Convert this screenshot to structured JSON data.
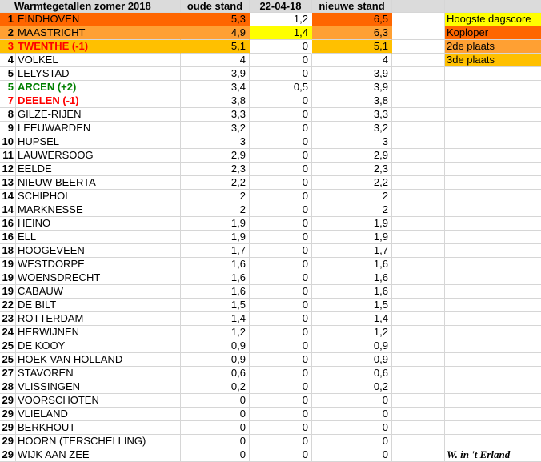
{
  "header": {
    "title": "Warmtegetallen zomer 2018",
    "col_oude": "oude stand",
    "col_date": "22-04-18",
    "col_nieuwe": "nieuwe stand"
  },
  "colors": {
    "koploper": "#FF6600",
    "second": "#FFA033",
    "third": "#FFC000",
    "dagscore": "#FFFF00",
    "red_text": "#FF0000",
    "green_text": "#008000",
    "header_bg": "#DBDBDB",
    "gridline": "#D6D6D6"
  },
  "legend": [
    {
      "label": "Hoogste dagscore",
      "color": "dagscore"
    },
    {
      "label": "Koploper",
      "color": "koploper"
    },
    {
      "label": "2de plaats",
      "color": "second"
    },
    {
      "label": "3de plaats",
      "color": "third"
    }
  ],
  "signature": "W. in 't Erland",
  "rows": [
    {
      "rank": "1",
      "name": "EINDHOVEN",
      "oude": "5,3",
      "dag": "1,2",
      "nieuwe": "6,5",
      "fill": "koploper"
    },
    {
      "rank": "2",
      "name": "MAASTRICHT",
      "oude": "4,9",
      "dag": "1,4",
      "nieuwe": "6,3",
      "fill": "second",
      "dag_fill": "dagscore"
    },
    {
      "rank": "3",
      "name": "TWENTHE (-1)",
      "oude": "5,1",
      "dag": "0",
      "nieuwe": "5,1",
      "fill": "third",
      "text": "red"
    },
    {
      "rank": "4",
      "name": "VOLKEL",
      "oude": "4",
      "dag": "0",
      "nieuwe": "4"
    },
    {
      "rank": "5",
      "name": "LELYSTAD",
      "oude": "3,9",
      "dag": "0",
      "nieuwe": "3,9"
    },
    {
      "rank": "5",
      "name": "ARCEN (+2)",
      "oude": "3,4",
      "dag": "0,5",
      "nieuwe": "3,9",
      "text": "green"
    },
    {
      "rank": "7",
      "name": "DEELEN (-1)",
      "oude": "3,8",
      "dag": "0",
      "nieuwe": "3,8",
      "text": "red"
    },
    {
      "rank": "8",
      "name": "GILZE-RIJEN",
      "oude": "3,3",
      "dag": "0",
      "nieuwe": "3,3"
    },
    {
      "rank": "9",
      "name": "LEEUWARDEN",
      "oude": "3,2",
      "dag": "0",
      "nieuwe": "3,2"
    },
    {
      "rank": "10",
      "name": "HUPSEL",
      "oude": "3",
      "dag": "0",
      "nieuwe": "3"
    },
    {
      "rank": "11",
      "name": "LAUWERSOOG",
      "oude": "2,9",
      "dag": "0",
      "nieuwe": "2,9"
    },
    {
      "rank": "12",
      "name": "EELDE",
      "oude": "2,3",
      "dag": "0",
      "nieuwe": "2,3"
    },
    {
      "rank": "13",
      "name": "NIEUW BEERTA",
      "oude": "2,2",
      "dag": "0",
      "nieuwe": "2,2"
    },
    {
      "rank": "14",
      "name": "SCHIPHOL",
      "oude": "2",
      "dag": "0",
      "nieuwe": "2"
    },
    {
      "rank": "14",
      "name": "MARKNESSE",
      "oude": "2",
      "dag": "0",
      "nieuwe": "2"
    },
    {
      "rank": "16",
      "name": "HEINO",
      "oude": "1,9",
      "dag": "0",
      "nieuwe": "1,9"
    },
    {
      "rank": "16",
      "name": "ELL",
      "oude": "1,9",
      "dag": "0",
      "nieuwe": "1,9"
    },
    {
      "rank": "18",
      "name": "HOOGEVEEN",
      "oude": "1,7",
      "dag": "0",
      "nieuwe": "1,7"
    },
    {
      "rank": "19",
      "name": "WESTDORPE",
      "oude": "1,6",
      "dag": "0",
      "nieuwe": "1,6"
    },
    {
      "rank": "19",
      "name": "WOENSDRECHT",
      "oude": "1,6",
      "dag": "0",
      "nieuwe": "1,6"
    },
    {
      "rank": "19",
      "name": "CABAUW",
      "oude": "1,6",
      "dag": "0",
      "nieuwe": "1,6"
    },
    {
      "rank": "22",
      "name": "DE BILT",
      "oude": "1,5",
      "dag": "0",
      "nieuwe": "1,5"
    },
    {
      "rank": "23",
      "name": "ROTTERDAM",
      "oude": "1,4",
      "dag": "0",
      "nieuwe": "1,4"
    },
    {
      "rank": "24",
      "name": "HERWIJNEN",
      "oude": "1,2",
      "dag": "0",
      "nieuwe": "1,2"
    },
    {
      "rank": "25",
      "name": "DE KOOY",
      "oude": "0,9",
      "dag": "0",
      "nieuwe": "0,9"
    },
    {
      "rank": "25",
      "name": "HOEK VAN HOLLAND",
      "oude": "0,9",
      "dag": "0",
      "nieuwe": "0,9"
    },
    {
      "rank": "27",
      "name": "STAVOREN",
      "oude": "0,6",
      "dag": "0",
      "nieuwe": "0,6"
    },
    {
      "rank": "28",
      "name": "VLISSINGEN",
      "oude": "0,2",
      "dag": "0",
      "nieuwe": "0,2"
    },
    {
      "rank": "29",
      "name": "VOORSCHOTEN",
      "oude": "0",
      "dag": "0",
      "nieuwe": "0"
    },
    {
      "rank": "29",
      "name": "VLIELAND",
      "oude": "0",
      "dag": "0",
      "nieuwe": "0"
    },
    {
      "rank": "29",
      "name": "BERKHOUT",
      "oude": "0",
      "dag": "0",
      "nieuwe": "0"
    },
    {
      "rank": "29",
      "name": "HOORN (TERSCHELLING)",
      "oude": "0",
      "dag": "0",
      "nieuwe": "0"
    },
    {
      "rank": "29",
      "name": "WIJK AAN ZEE",
      "oude": "0",
      "dag": "0",
      "nieuwe": "0"
    }
  ]
}
